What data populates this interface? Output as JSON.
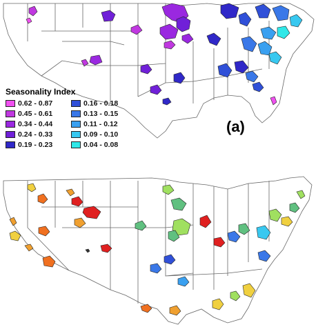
{
  "legend": {
    "title": "Seasonality Index",
    "items": [
      {
        "label": "0.62 - 0.87",
        "color": "#f050f0"
      },
      {
        "label": "0.16 - 0.18",
        "color": "#3050d8"
      },
      {
        "label": "0.45 - 0.61",
        "color": "#c038e0"
      },
      {
        "label": "0.13 - 0.15",
        "color": "#3a78e8"
      },
      {
        "label": "0.34 - 0.44",
        "color": "#9a28e0"
      },
      {
        "label": "0.11 - 0.12",
        "color": "#3aa0f0"
      },
      {
        "label": "0.24 - 0.33",
        "color": "#7020d8"
      },
      {
        "label": "0.09 - 0.10",
        "color": "#38c8f0"
      },
      {
        "label": "0.19 - 0.23",
        "color": "#3028c8"
      },
      {
        "label": "0.04 - 0.08",
        "color": "#30e8e8"
      }
    ]
  },
  "panel_label": "(a)",
  "map_colors": {
    "outline": "#555555",
    "warm": [
      "#e02020",
      "#f07020",
      "#f0a030",
      "#f0d040"
    ],
    "green": [
      "#a0e060",
      "#60c080"
    ],
    "cool": [
      "#30c8f0",
      "#3a90e8",
      "#3050d8"
    ]
  }
}
